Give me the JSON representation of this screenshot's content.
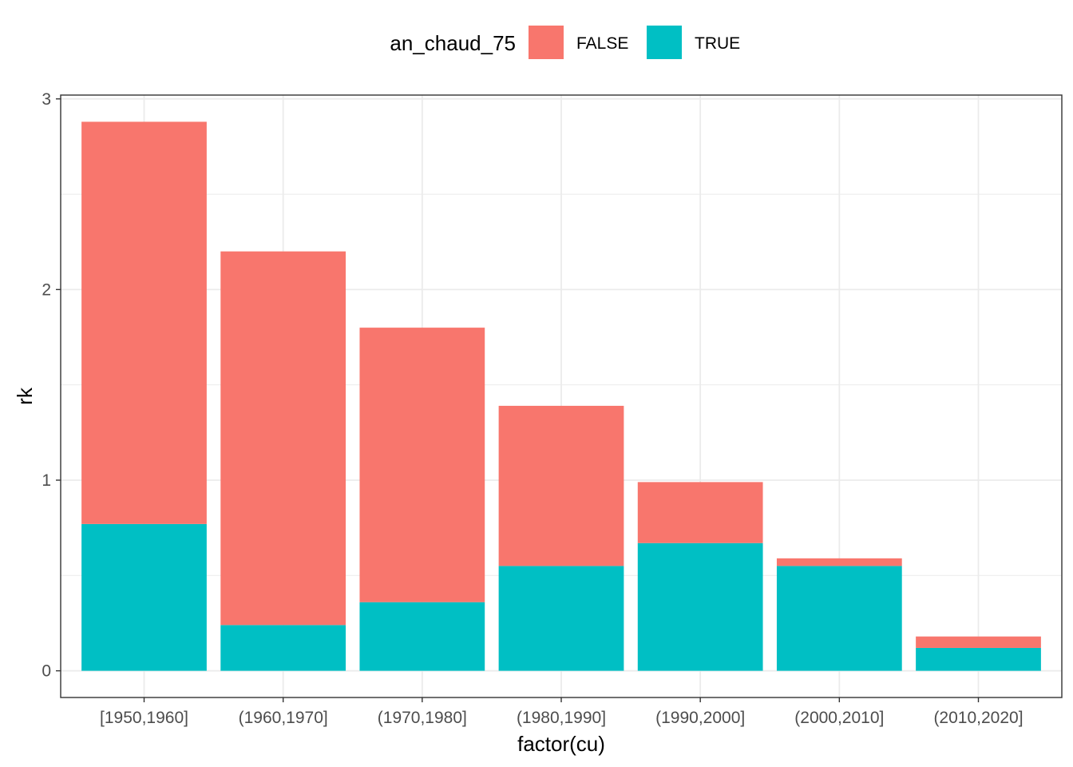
{
  "chart_data": {
    "type": "bar",
    "stacked": true,
    "categories": [
      "[1950,1960]",
      "(1960,1970]",
      "(1970,1980]",
      "(1980,1990]",
      "(1990,2000]",
      "(2000,2010]",
      "(2010,2020]"
    ],
    "series": [
      {
        "name": "FALSE",
        "color": "#F8766D",
        "values": [
          2.11,
          1.96,
          1.44,
          0.84,
          0.32,
          0.04,
          0.06
        ]
      },
      {
        "name": "TRUE",
        "color": "#00BFC4",
        "values": [
          0.77,
          0.24,
          0.36,
          0.55,
          0.67,
          0.55,
          0.12
        ]
      }
    ],
    "title": "",
    "xlabel": "factor(cu)",
    "ylabel": "rk",
    "ylim": [
      -0.14,
      3.02
    ],
    "yticks": [
      "0",
      "1",
      "2",
      "3"
    ],
    "grid": true,
    "legend": {
      "title": "an_chaud_75",
      "position": "top",
      "entries": [
        "FALSE",
        "TRUE"
      ]
    }
  }
}
